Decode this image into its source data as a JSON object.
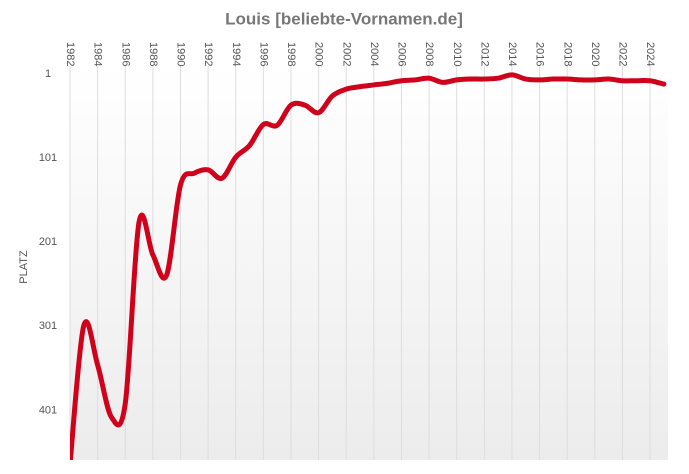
{
  "chart_data": {
    "type": "line",
    "title": "Louis [beliebte-Vornamen.de]",
    "y_label": "PLATZ",
    "x": [
      1982,
      1983,
      1984,
      1985,
      1986,
      1987,
      1988,
      1989,
      1990,
      1991,
      1992,
      1993,
      1994,
      1995,
      1996,
      1997,
      1998,
      1999,
      2000,
      2001,
      2002,
      2003,
      2004,
      2005,
      2006,
      2007,
      2008,
      2009,
      2010,
      2011,
      2012,
      2013,
      2014,
      2015,
      2016,
      2017,
      2018,
      2019,
      2020,
      2021,
      2022,
      2023,
      2024,
      2025
    ],
    "series": [
      {
        "name": "Louis",
        "color": "#d0021b",
        "values": [
          465,
          300,
          347,
          409,
          393,
          177,
          216,
          240,
          133,
          119,
          115,
          125,
          100,
          86,
          61,
          62,
          38,
          38,
          47,
          27,
          19,
          16,
          14,
          12,
          9,
          8,
          6,
          11,
          8,
          7,
          7,
          6,
          2,
          7,
          8,
          7,
          7,
          8,
          8,
          7,
          9,
          9,
          9,
          13
        ]
      }
    ],
    "xlim": [
      1982,
      2025.3
    ],
    "xticks": [
      1982,
      1984,
      1986,
      1988,
      1990,
      1992,
      1994,
      1996,
      1998,
      2000,
      2002,
      2004,
      2006,
      2008,
      2010,
      2012,
      2014,
      2016,
      2018,
      2020,
      2022,
      2024
    ],
    "ylim": [
      1,
      460
    ],
    "yticks": [
      1,
      101,
      201,
      301,
      401
    ],
    "invert_y": true,
    "grid": true
  }
}
